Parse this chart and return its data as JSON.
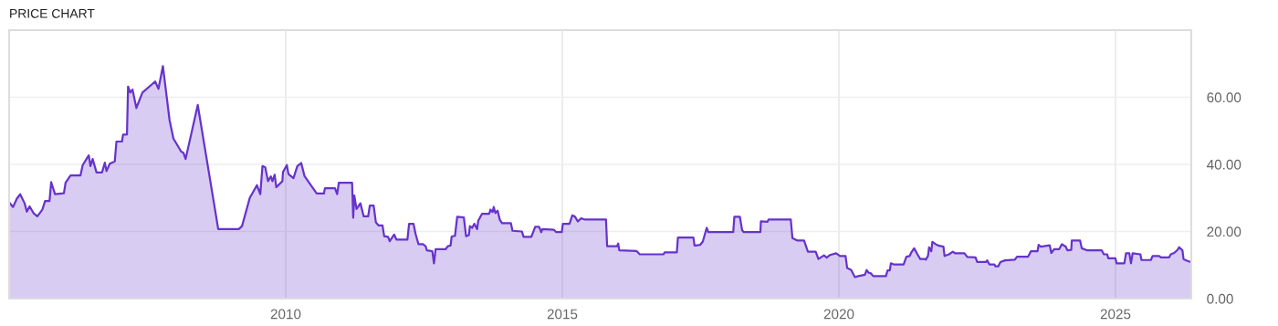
{
  "chart_data": {
    "type": "area",
    "title": "PRICE CHART",
    "xlim": [
      2005,
      2026.37
    ],
    "xticks": [
      2010,
      2015,
      2020,
      2025
    ],
    "ylim": [
      0,
      80
    ],
    "yticks": [
      {
        "value": 0,
        "label": "0.00"
      },
      {
        "value": 20,
        "label": "20.00"
      },
      {
        "value": 40,
        "label": "40.00"
      },
      {
        "value": 60,
        "label": "60.00"
      }
    ],
    "grid": true,
    "series": [
      {
        "color": "#6633cc",
        "x": [
          2005.01,
          2005.07,
          2005.14,
          2005.2,
          2005.28,
          2005.32,
          2005.37,
          2005.44,
          2005.51,
          2005.6,
          2005.65,
          2005.73,
          2005.76,
          2005.83,
          2005.99,
          2006.02,
          2006.11,
          2006.29,
          2006.33,
          2006.44,
          2006.47,
          2006.51,
          2006.58,
          2006.68,
          2006.73,
          2006.76,
          2006.82,
          2006.91,
          2006.94,
          2007.04,
          2007.06,
          2007.13,
          2007.15,
          2007.19,
          2007.23,
          2007.3,
          2007.41,
          2007.64,
          2007.7,
          2007.78,
          2007.9,
          2007.97,
          2008.11,
          2008.15,
          2008.19,
          2008.41,
          2008.78,
          2009.15,
          2009.21,
          2009.35,
          2009.48,
          2009.54,
          2009.58,
          2009.63,
          2009.68,
          2009.73,
          2009.76,
          2009.8,
          2009.83,
          2009.94,
          2009.95,
          2010.02,
          2010.05,
          2010.14,
          2010.21,
          2010.28,
          2010.34,
          2010.56,
          2010.69,
          2010.71,
          2010.89,
          2010.93,
          2010.96,
          2011.2,
          2011.22,
          2011.24,
          2011.28,
          2011.35,
          2011.41,
          2011.49,
          2011.52,
          2011.59,
          2011.63,
          2011.68,
          2011.75,
          2011.78,
          2011.85,
          2011.88,
          2011.96,
          2012.0,
          2012.2,
          2012.23,
          2012.31,
          2012.35,
          2012.4,
          2012.48,
          2012.53,
          2012.55,
          2012.65,
          2012.68,
          2012.71,
          2012.89,
          2012.93,
          2012.98,
          2013.0,
          2013.06,
          2013.1,
          2013.22,
          2013.26,
          2013.31,
          2013.33,
          2013.37,
          2013.41,
          2013.46,
          2013.48,
          2013.55,
          2013.68,
          2013.7,
          2013.74,
          2013.76,
          2013.79,
          2013.83,
          2013.87,
          2013.91,
          2014.07,
          2014.1,
          2014.27,
          2014.3,
          2014.44,
          2014.51,
          2014.58,
          2014.62,
          2014.64,
          2014.85,
          2014.89,
          2014.99,
          2015.01,
          2015.13,
          2015.18,
          2015.23,
          2015.28,
          2015.34,
          2015.4,
          2015.79,
          2015.81,
          2015.99,
          2016.01,
          2016.03,
          2016.34,
          2016.4,
          2016.83,
          2016.85,
          2017.07,
          2017.09,
          2017.37,
          2017.39,
          2017.49,
          2017.54,
          2017.61,
          2017.64,
          2018.09,
          2018.11,
          2018.21,
          2018.25,
          2018.28,
          2018.58,
          2018.59,
          2018.71,
          2018.73,
          2019.13,
          2019.16,
          2019.25,
          2019.37,
          2019.44,
          2019.58,
          2019.63,
          2019.73,
          2019.78,
          2019.84,
          2019.95,
          2020.02,
          2020.12,
          2020.15,
          2020.22,
          2020.29,
          2020.35,
          2020.47,
          2020.5,
          2020.54,
          2020.58,
          2020.62,
          2020.85,
          2020.88,
          2020.92,
          2020.94,
          2020.99,
          2021.17,
          2021.22,
          2021.28,
          2021.31,
          2021.36,
          2021.42,
          2021.47,
          2021.55,
          2021.57,
          2021.61,
          2021.63,
          2021.67,
          2021.69,
          2021.75,
          2021.8,
          2021.89,
          2021.91,
          2021.99,
          2022.06,
          2022.1,
          2022.27,
          2022.32,
          2022.47,
          2022.5,
          2022.66,
          2022.68,
          2022.72,
          2022.81,
          2022.83,
          2022.88,
          2022.92,
          2023.0,
          2023.18,
          2023.22,
          2023.42,
          2023.47,
          2023.59,
          2023.61,
          2023.65,
          2023.81,
          2023.84,
          2023.89,
          2023.98,
          2024.03,
          2024.1,
          2024.13,
          2024.2,
          2024.21,
          2024.36,
          2024.39,
          2024.48,
          2024.75,
          2024.79,
          2024.85,
          2024.87,
          2025.0,
          2025.02,
          2025.16,
          2025.19,
          2025.25,
          2025.28,
          2025.31,
          2025.45,
          2025.47,
          2025.64,
          2025.67,
          2025.79,
          2025.82,
          2025.97,
          2026.0,
          2026.06,
          2026.12,
          2026.15,
          2026.21,
          2026.23,
          2026.29,
          2026.36
        ],
        "values": [
          28.5,
          27.3,
          29.8,
          31.1,
          28.4,
          25.9,
          27.5,
          25.5,
          24.5,
          26.5,
          29.1,
          29.1,
          34.7,
          31.1,
          31.4,
          34.5,
          36.7,
          36.7,
          39.8,
          42.7,
          39.5,
          41.6,
          37.6,
          37.6,
          40.5,
          38,
          40.2,
          40.9,
          46.8,
          46.8,
          48.9,
          48.9,
          63.2,
          61.4,
          62.3,
          56.8,
          61.4,
          64.7,
          62.5,
          69.3,
          53.2,
          47.7,
          43.8,
          43.5,
          41.6,
          57.7,
          20.7,
          20.7,
          21.6,
          30,
          33.8,
          31.1,
          39.5,
          39.1,
          35,
          36.4,
          35,
          36.9,
          33.2,
          35,
          37.7,
          39.8,
          37.1,
          35.9,
          39.5,
          40.4,
          36.5,
          31.3,
          31.3,
          32.9,
          32.9,
          31.1,
          34.5,
          34.5,
          24.1,
          30.7,
          26.7,
          28.4,
          24.5,
          24.5,
          27.7,
          27.7,
          22.7,
          21.8,
          21.8,
          18.6,
          18.4,
          17.1,
          19.1,
          17.6,
          17.6,
          22.3,
          22.3,
          19.1,
          16.2,
          16.2,
          15.6,
          14.4,
          14.1,
          10.5,
          14.7,
          14.7,
          15.6,
          15.8,
          18.5,
          18.7,
          24.4,
          24.2,
          18.6,
          18.9,
          21.6,
          21.1,
          22.3,
          20.7,
          23.2,
          25.3,
          25.3,
          26.5,
          25.8,
          27.3,
          25.5,
          26.2,
          23.5,
          22.5,
          22.5,
          20.2,
          20,
          18.4,
          18.4,
          21.4,
          21.4,
          19.8,
          20.7,
          20.5,
          19.8,
          19.8,
          22.3,
          22.3,
          24.8,
          24.4,
          23,
          23.9,
          23.6,
          23.6,
          15.6,
          15.6,
          16.4,
          14.4,
          14.2,
          13.2,
          13.2,
          13.8,
          13.8,
          18.2,
          18.2,
          15.8,
          16,
          17,
          21.1,
          19.8,
          19.8,
          24.4,
          24.4,
          20.4,
          19.8,
          19.8,
          23,
          22.9,
          23.6,
          23.6,
          18,
          17.3,
          17.3,
          14,
          14,
          11.8,
          12.9,
          12.2,
          13,
          13.5,
          12.7,
          12.7,
          9.1,
          8.6,
          6.4,
          6.7,
          7.1,
          8.5,
          7.7,
          7.5,
          6.7,
          6.7,
          8.4,
          8.4,
          10.5,
          10.2,
          10.2,
          12.5,
          12.7,
          13.8,
          15,
          13.2,
          11.8,
          11.8,
          11.6,
          12.7,
          15.3,
          14.1,
          16.9,
          16.2,
          15.8,
          15.5,
          12.7,
          13.2,
          14,
          13.5,
          13.5,
          12.4,
          12.3,
          10.9,
          10.9,
          11.4,
          10.2,
          10.2,
          9.6,
          9.6,
          10.9,
          11.4,
          11.6,
          12.5,
          12.5,
          14.1,
          14.1,
          16,
          15.5,
          15.9,
          13.6,
          14.7,
          14.7,
          16.2,
          15.5,
          14.4,
          14.5,
          17.3,
          17.3,
          15,
          14.4,
          14.4,
          13.2,
          13.2,
          12,
          12,
          10.5,
          10.5,
          13.5,
          13.5,
          10.5,
          13.5,
          13.2,
          11.5,
          11.5,
          12.7,
          12.7,
          12.3,
          12.3,
          13.2,
          13.6,
          14.5,
          15.3,
          14.4,
          11.8,
          11.3,
          10.9
        ]
      }
    ]
  }
}
